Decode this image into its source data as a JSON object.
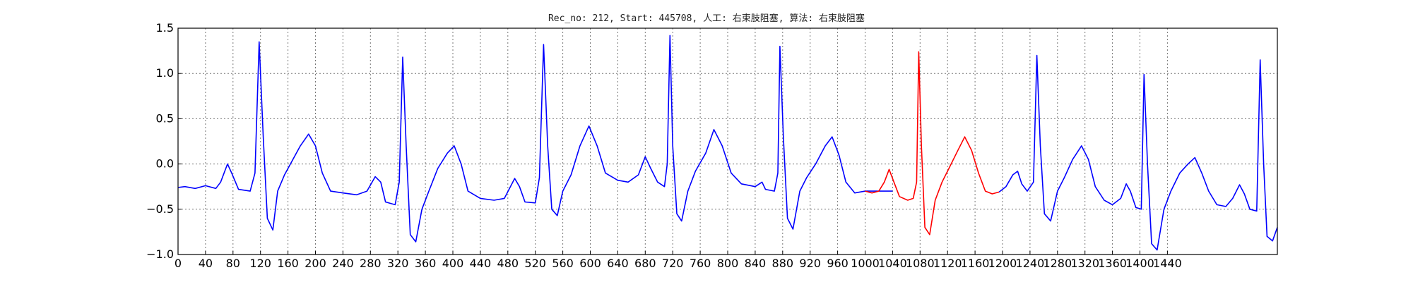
{
  "chart_data": {
    "type": "line",
    "title": "Rec_no: 212, Start: 445708, 人工: 右束肢阻塞, 算法: 右束肢阻塞",
    "xlabel": "",
    "ylabel": "",
    "xlim": [
      0,
      1600
    ],
    "ylim": [
      -1.0,
      1.5
    ],
    "grid": true,
    "y_ticks": [
      1.5,
      1.0,
      0.5,
      0.0,
      -0.5,
      -1.0
    ],
    "y_tick_labels": [
      "1.5",
      "1.0",
      "0.5",
      "0.0",
      "−0.5",
      "−1.0"
    ],
    "x_ticks": [
      0,
      40,
      80,
      120,
      160,
      200,
      240,
      280,
      320,
      360,
      400,
      440,
      480,
      520,
      560,
      600,
      640,
      680,
      720,
      760,
      800,
      840,
      880,
      920,
      960,
      1000,
      1040,
      1080,
      1120,
      1160,
      1200,
      1240,
      1280,
      1320,
      1360,
      1400,
      1440
    ],
    "x_tick_labels": [
      "0",
      "40",
      "80",
      "120",
      "160",
      "200",
      "240",
      "280",
      "320",
      "360",
      "400",
      "440",
      "480",
      "520",
      "560",
      "600",
      "640",
      "680",
      "720",
      "760",
      "800",
      "840",
      "880",
      "920",
      "960",
      "1000",
      "1040",
      "1080",
      "1120",
      "1160",
      "1200",
      "1240",
      "1280",
      "1320",
      "1360",
      "1400",
      "1440"
    ],
    "series": [
      {
        "color": "#0000ff",
        "points": [
          [
            0,
            -0.26
          ],
          [
            10,
            -0.25
          ],
          [
            25,
            -0.27
          ],
          [
            40,
            -0.24
          ],
          [
            55,
            -0.27
          ],
          [
            62,
            -0.2
          ],
          [
            72,
            0.0
          ],
          [
            78,
            -0.1
          ],
          [
            88,
            -0.28
          ],
          [
            105,
            -0.3
          ],
          [
            112,
            -0.1
          ],
          [
            118,
            1.35
          ],
          [
            124,
            0.3
          ],
          [
            130,
            -0.6
          ],
          [
            138,
            -0.73
          ],
          [
            145,
            -0.3
          ],
          [
            155,
            -0.12
          ],
          [
            165,
            0.02
          ],
          [
            178,
            0.2
          ],
          [
            190,
            0.33
          ],
          [
            200,
            0.2
          ],
          [
            210,
            -0.1
          ],
          [
            222,
            -0.3
          ],
          [
            240,
            -0.32
          ],
          [
            260,
            -0.34
          ],
          [
            275,
            -0.3
          ],
          [
            287,
            -0.14
          ],
          [
            295,
            -0.2
          ],
          [
            302,
            -0.42
          ],
          [
            316,
            -0.45
          ],
          [
            322,
            -0.2
          ],
          [
            327,
            1.18
          ],
          [
            332,
            0.2
          ],
          [
            338,
            -0.78
          ],
          [
            346,
            -0.86
          ],
          [
            355,
            -0.5
          ],
          [
            365,
            -0.3
          ],
          [
            378,
            -0.05
          ],
          [
            392,
            0.12
          ],
          [
            402,
            0.2
          ],
          [
            412,
            0.0
          ],
          [
            422,
            -0.3
          ],
          [
            440,
            -0.38
          ],
          [
            460,
            -0.4
          ],
          [
            475,
            -0.38
          ],
          [
            490,
            -0.16
          ],
          [
            497,
            -0.25
          ],
          [
            505,
            -0.42
          ],
          [
            520,
            -0.43
          ],
          [
            526,
            -0.15
          ],
          [
            532,
            1.32
          ],
          [
            538,
            0.2
          ],
          [
            544,
            -0.5
          ],
          [
            552,
            -0.57
          ],
          [
            560,
            -0.3
          ],
          [
            572,
            -0.12
          ],
          [
            585,
            0.2
          ],
          [
            598,
            0.42
          ],
          [
            610,
            0.2
          ],
          [
            622,
            -0.1
          ],
          [
            640,
            -0.18
          ],
          [
            655,
            -0.2
          ],
          [
            670,
            -0.12
          ],
          [
            680,
            0.08
          ],
          [
            688,
            -0.05
          ],
          [
            698,
            -0.2
          ],
          [
            708,
            -0.25
          ],
          [
            712,
            0.0
          ],
          [
            716,
            1.42
          ],
          [
            720,
            0.2
          ],
          [
            726,
            -0.55
          ],
          [
            733,
            -0.63
          ],
          [
            742,
            -0.3
          ],
          [
            753,
            -0.08
          ],
          [
            768,
            0.12
          ],
          [
            780,
            0.38
          ],
          [
            792,
            0.2
          ],
          [
            805,
            -0.1
          ],
          [
            820,
            -0.22
          ],
          [
            840,
            -0.25
          ],
          [
            850,
            -0.2
          ],
          [
            855,
            -0.28
          ],
          [
            868,
            -0.3
          ],
          [
            873,
            -0.1
          ],
          [
            876,
            1.3
          ],
          [
            881,
            0.3
          ],
          [
            887,
            -0.6
          ],
          [
            895,
            -0.72
          ],
          [
            905,
            -0.3
          ],
          [
            915,
            -0.15
          ],
          [
            928,
            0.0
          ],
          [
            942,
            0.2
          ],
          [
            952,
            0.3
          ],
          [
            962,
            0.1
          ],
          [
            972,
            -0.2
          ],
          [
            985,
            -0.32
          ],
          [
            1000,
            -0.3
          ],
          [
            1010,
            -0.3
          ],
          [
            1025,
            -0.3
          ],
          [
            1040,
            -0.3
          ]
        ]
      },
      {
        "color": "#ff0000",
        "points": [
          [
            1000,
            -0.3
          ],
          [
            1010,
            -0.32
          ],
          [
            1020,
            -0.3
          ],
          [
            1028,
            -0.2
          ],
          [
            1035,
            -0.06
          ],
          [
            1042,
            -0.2
          ],
          [
            1050,
            -0.36
          ],
          [
            1062,
            -0.4
          ],
          [
            1070,
            -0.38
          ],
          [
            1075,
            -0.2
          ],
          [
            1078,
            1.24
          ],
          [
            1082,
            0.2
          ],
          [
            1087,
            -0.7
          ],
          [
            1094,
            -0.78
          ],
          [
            1102,
            -0.4
          ],
          [
            1112,
            -0.2
          ],
          [
            1122,
            -0.05
          ],
          [
            1135,
            0.15
          ],
          [
            1145,
            0.3
          ],
          [
            1155,
            0.15
          ],
          [
            1165,
            -0.1
          ],
          [
            1175,
            -0.3
          ],
          [
            1185,
            -0.33
          ],
          [
            1195,
            -0.31
          ]
        ]
      },
      {
        "color": "#0000ff",
        "points": [
          [
            1195,
            -0.31
          ],
          [
            1205,
            -0.25
          ],
          [
            1215,
            -0.12
          ],
          [
            1222,
            -0.08
          ],
          [
            1228,
            -0.22
          ],
          [
            1236,
            -0.3
          ],
          [
            1245,
            -0.2
          ],
          [
            1250,
            1.2
          ],
          [
            1255,
            0.2
          ],
          [
            1261,
            -0.55
          ],
          [
            1270,
            -0.63
          ],
          [
            1280,
            -0.3
          ],
          [
            1290,
            -0.15
          ],
          [
            1302,
            0.05
          ],
          [
            1315,
            0.2
          ],
          [
            1325,
            0.05
          ],
          [
            1335,
            -0.25
          ],
          [
            1348,
            -0.4
          ],
          [
            1360,
            -0.45
          ],
          [
            1372,
            -0.38
          ],
          [
            1380,
            -0.22
          ],
          [
            1386,
            -0.3
          ],
          [
            1394,
            -0.48
          ],
          [
            1402,
            -0.5
          ],
          [
            1406,
            0.99
          ],
          [
            1411,
            0.0
          ],
          [
            1417,
            -0.88
          ],
          [
            1425,
            -0.95
          ],
          [
            1435,
            -0.5
          ],
          [
            1445,
            -0.3
          ],
          [
            1458,
            -0.1
          ],
          [
            1470,
            0.0
          ],
          [
            1480,
            0.07
          ],
          [
            1490,
            -0.1
          ],
          [
            1500,
            -0.3
          ],
          [
            1512,
            -0.45
          ],
          [
            1525,
            -0.47
          ],
          [
            1535,
            -0.38
          ],
          [
            1545,
            -0.23
          ],
          [
            1552,
            -0.33
          ],
          [
            1560,
            -0.5
          ],
          [
            1570,
            -0.52
          ],
          [
            1575,
            1.15
          ],
          [
            1580,
            0.0
          ],
          [
            1585,
            -0.8
          ],
          [
            1593,
            -0.85
          ],
          [
            1600,
            -0.7
          ]
        ]
      }
    ]
  }
}
